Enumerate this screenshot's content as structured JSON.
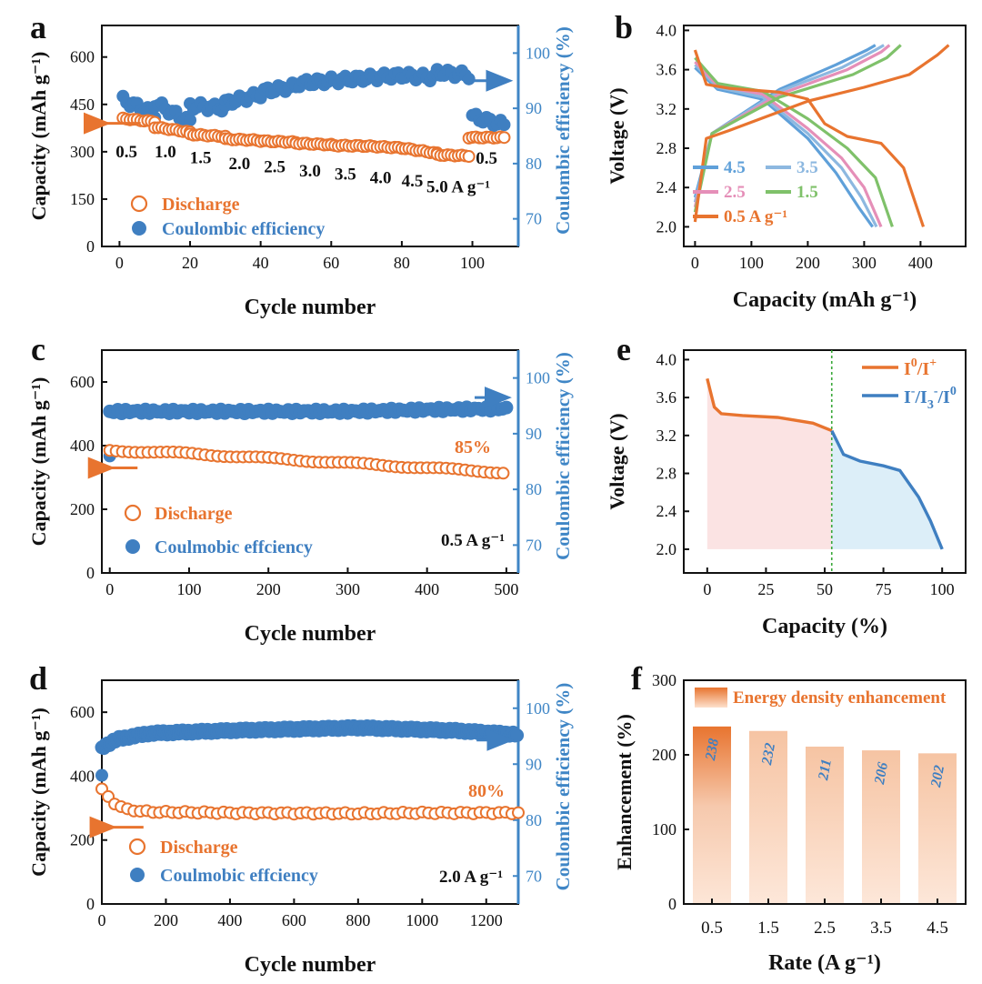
{
  "figure_title": "Figure: electrochemical performance of a zinc-iodine battery",
  "colors": {
    "orange": "#e8742f",
    "blue": "#3f7fc1",
    "axis_blue": "#3f86c6",
    "pink": "#e58fb8",
    "green": "#7fc16a",
    "light_blue": "#8db8e0",
    "mid_blue": "#5fa0d9",
    "green_dash": "#3aa83a",
    "fill_pink": "#fbe3e3",
    "fill_blue": "#dceef8"
  },
  "chart_data": [
    {
      "id": "a",
      "panel_label": "a",
      "type": "scatter",
      "title": "",
      "xlabel": "Cycle number",
      "ylabel": "Capacity (mAh g⁻¹)",
      "ylabel_right": "Coulombic efficiency (%)",
      "xlim": [
        -5,
        113
      ],
      "ylim": [
        0,
        700
      ],
      "ylim_right": [
        65,
        105
      ],
      "xticks": [
        0,
        20,
        40,
        60,
        80,
        100
      ],
      "yticks": [
        0,
        150,
        300,
        450,
        600
      ],
      "yticks_right": [
        70,
        80,
        90,
        100
      ],
      "rate_labels": [
        {
          "text": "0.5",
          "x": 2,
          "y": 305
        },
        {
          "text": "1.0",
          "x": 13,
          "y": 305
        },
        {
          "text": "1.5",
          "x": 23,
          "y": 286
        },
        {
          "text": "2.0",
          "x": 34,
          "y": 268
        },
        {
          "text": "2.5",
          "x": 44,
          "y": 258
        },
        {
          "text": "3.0",
          "x": 54,
          "y": 245
        },
        {
          "text": "3.5",
          "x": 64,
          "y": 235
        },
        {
          "text": "4.0",
          "x": 74,
          "y": 223
        },
        {
          "text": "4.5",
          "x": 83,
          "y": 213
        },
        {
          "text": "5.0 A g⁻¹",
          "x": 96,
          "y": 195
        },
        {
          "text": "0.5",
          "x": 104,
          "y": 285
        }
      ],
      "legend": [
        "Discharge",
        "Coulombic efficiency"
      ],
      "series": [
        {
          "name": "Discharge",
          "axis": "left",
          "marker": "open-circle",
          "segments": [
            {
              "x0": 1,
              "x1": 10,
              "v0": 405,
              "v1": 395
            },
            {
              "x0": 10,
              "x1": 20,
              "v0": 378,
              "v1": 362
            },
            {
              "x0": 20,
              "x1": 30,
              "v0": 355,
              "v1": 348
            },
            {
              "x0": 30,
              "x1": 40,
              "v0": 340,
              "v1": 336
            },
            {
              "x0": 40,
              "x1": 50,
              "v0": 334,
              "v1": 330
            },
            {
              "x0": 50,
              "x1": 60,
              "v0": 327,
              "v1": 322
            },
            {
              "x0": 60,
              "x1": 70,
              "v0": 320,
              "v1": 318
            },
            {
              "x0": 70,
              "x1": 80,
              "v0": 318,
              "v1": 312
            },
            {
              "x0": 80,
              "x1": 90,
              "v0": 312,
              "v1": 295
            },
            {
              "x0": 90,
              "x1": 99,
              "v0": 290,
              "v1": 287
            },
            {
              "x0": 99,
              "x1": 109,
              "v0": 345,
              "v1": 345
            }
          ]
        },
        {
          "name": "Coulombic efficiency",
          "axis": "right",
          "marker": "filled-circle",
          "segments": [
            {
              "x0": 1,
              "x1": 10,
              "v0": 91.5,
              "v1": 89.0
            },
            {
              "x0": 10,
              "x1": 20,
              "v0": 91.0,
              "v1": 87.5
            },
            {
              "x0": 20,
              "x1": 30,
              "v0": 90.5,
              "v1": 90.0
            },
            {
              "x0": 30,
              "x1": 40,
              "v0": 91.0,
              "v1": 92.5
            },
            {
              "x0": 40,
              "x1": 50,
              "v0": 93.0,
              "v1": 94.0
            },
            {
              "x0": 50,
              "x1": 60,
              "v0": 94.5,
              "v1": 95.0
            },
            {
              "x0": 60,
              "x1": 70,
              "v0": 95.0,
              "v1": 95.5
            },
            {
              "x0": 70,
              "x1": 80,
              "v0": 95.5,
              "v1": 96.0
            },
            {
              "x0": 80,
              "x1": 90,
              "v0": 96.0,
              "v1": 95.5
            },
            {
              "x0": 90,
              "x1": 99,
              "v0": 96.5,
              "v1": 96.0
            },
            {
              "x0": 100,
              "x1": 109,
              "v0": 88.5,
              "v1": 87.0
            }
          ]
        }
      ]
    },
    {
      "id": "b",
      "panel_label": "b",
      "type": "line",
      "title": "",
      "xlabel": "Capacity (mAh g⁻¹)",
      "ylabel": "Voltage (V)",
      "xlim": [
        -20,
        480
      ],
      "ylim": [
        1.8,
        4.05
      ],
      "xticks": [
        0,
        100,
        200,
        300,
        400
      ],
      "yticks": [
        2.0,
        2.4,
        2.8,
        3.2,
        3.6,
        4.0
      ],
      "legend": [
        "4.5",
        "3.5",
        "2.5",
        "1.5",
        "0.5 A g⁻¹"
      ],
      "series": [
        {
          "name": "0.5 A g⁻¹",
          "color_key": "orange",
          "discharge": [
            [
              0,
              3.8
            ],
            [
              20,
              3.45
            ],
            [
              60,
              3.41
            ],
            [
              150,
              3.37
            ],
            [
              200,
              3.3
            ],
            [
              230,
              3.05
            ],
            [
              270,
              2.92
            ],
            [
              330,
              2.85
            ],
            [
              370,
              2.6
            ],
            [
              405,
              2.0
            ]
          ],
          "charge": [
            [
              0,
              2.05
            ],
            [
              20,
              2.9
            ],
            [
              60,
              2.98
            ],
            [
              200,
              3.28
            ],
            [
              300,
              3.42
            ],
            [
              380,
              3.55
            ],
            [
              430,
              3.75
            ],
            [
              450,
              3.85
            ]
          ]
        },
        {
          "name": "1.5",
          "color_key": "green",
          "discharge": [
            [
              0,
              3.72
            ],
            [
              40,
              3.46
            ],
            [
              120,
              3.38
            ],
            [
              200,
              3.1
            ],
            [
              270,
              2.8
            ],
            [
              320,
              2.5
            ],
            [
              350,
              2.0
            ]
          ],
          "charge": [
            [
              0,
              2.15
            ],
            [
              30,
              2.95
            ],
            [
              150,
              3.32
            ],
            [
              280,
              3.55
            ],
            [
              340,
              3.72
            ],
            [
              365,
              3.85
            ]
          ]
        },
        {
          "name": "2.5",
          "color_key": "pink",
          "discharge": [
            [
              0,
              3.68
            ],
            [
              40,
              3.44
            ],
            [
              120,
              3.35
            ],
            [
              200,
              3.0
            ],
            [
              260,
              2.7
            ],
            [
              300,
              2.4
            ],
            [
              330,
              2.0
            ]
          ],
          "charge": [
            [
              0,
              2.2
            ],
            [
              30,
              2.95
            ],
            [
              150,
              3.35
            ],
            [
              270,
              3.6
            ],
            [
              330,
              3.78
            ],
            [
              345,
              3.85
            ]
          ]
        },
        {
          "name": "3.5",
          "color_key": "light_blue",
          "discharge": [
            [
              0,
              3.65
            ],
            [
              40,
              3.42
            ],
            [
              120,
              3.32
            ],
            [
              200,
              2.95
            ],
            [
              260,
              2.6
            ],
            [
              295,
              2.3
            ],
            [
              322,
              2.0
            ]
          ],
          "charge": [
            [
              0,
              2.25
            ],
            [
              30,
              2.95
            ],
            [
              150,
              3.38
            ],
            [
              260,
              3.62
            ],
            [
              320,
              3.8
            ],
            [
              335,
              3.85
            ]
          ]
        },
        {
          "name": "4.5",
          "color_key": "mid_blue",
          "discharge": [
            [
              0,
              3.62
            ],
            [
              40,
              3.4
            ],
            [
              120,
              3.3
            ],
            [
              200,
              2.9
            ],
            [
              250,
              2.55
            ],
            [
              290,
              2.2
            ],
            [
              315,
              2.0
            ]
          ],
          "charge": [
            [
              0,
              2.3
            ],
            [
              30,
              2.95
            ],
            [
              150,
              3.4
            ],
            [
              250,
              3.65
            ],
            [
              305,
              3.8
            ],
            [
              320,
              3.85
            ]
          ]
        }
      ]
    },
    {
      "id": "c",
      "panel_label": "c",
      "type": "scatter",
      "title": "",
      "xlabel": "Cycle number",
      "ylabel": "Capacity (mAh g⁻¹)",
      "ylabel_right": "Coulombic efficiency (%)",
      "xlim": [
        -10,
        515
      ],
      "ylim": [
        0,
        700
      ],
      "ylim_right": [
        65,
        105
      ],
      "xticks": [
        0,
        100,
        200,
        300,
        400,
        500
      ],
      "yticks": [
        0,
        200,
        400,
        600
      ],
      "yticks_right": [
        70,
        80,
        90,
        100
      ],
      "retention_label": "85%",
      "rate_label": "0.5 A g⁻¹",
      "legend": [
        "Discharge",
        "Coulmobic effciency"
      ],
      "series": [
        {
          "name": "Discharge",
          "axis": "left",
          "marker": "open-circle",
          "first_point": 370,
          "trend": [
            [
              0,
              385
            ],
            [
              100,
              375
            ],
            [
              200,
              360
            ],
            [
              300,
              345
            ],
            [
              400,
              330
            ],
            [
              500,
              315
            ]
          ]
        },
        {
          "name": "Coulmobic effciency",
          "axis": "right",
          "marker": "filled-circle",
          "first_point": 86,
          "trend": [
            [
              0,
              94
            ],
            [
              100,
              94
            ],
            [
              200,
              94
            ],
            [
              300,
              94
            ],
            [
              400,
              94.3
            ],
            [
              500,
              94.5
            ]
          ]
        }
      ]
    },
    {
      "id": "d",
      "panel_label": "d",
      "type": "scatter",
      "title": "",
      "xlabel": "Cycle number",
      "ylabel": "Capacity (mAh g⁻¹)",
      "ylabel_right": "Coulombic efficiency (%)",
      "xlim": [
        0,
        1300
      ],
      "ylim": [
        0,
        700
      ],
      "ylim_right": [
        65,
        105
      ],
      "xticks": [
        0,
        200,
        400,
        600,
        800,
        1000,
        1200
      ],
      "yticks": [
        0,
        200,
        400,
        600
      ],
      "yticks_right": [
        70,
        80,
        90,
        100
      ],
      "retention_label": "80%",
      "rate_label": "2.0 A g⁻¹",
      "legend": [
        "Discharge",
        "Coulmobic effciency"
      ],
      "series": [
        {
          "name": "Discharge",
          "axis": "left",
          "marker": "open-circle",
          "first_point": 365,
          "trend": [
            [
              0,
              360
            ],
            [
              30,
              320
            ],
            [
              80,
              295
            ],
            [
              150,
              288
            ],
            [
              400,
              285
            ],
            [
              800,
              283
            ],
            [
              1000,
              285
            ],
            [
              1300,
              285
            ]
          ]
        },
        {
          "name": "Coulmobic effciency",
          "axis": "right",
          "marker": "filled-circle",
          "first_point": 88,
          "trend": [
            [
              0,
              93
            ],
            [
              50,
              94.5
            ],
            [
              150,
              95.5
            ],
            [
              400,
              96
            ],
            [
              800,
              96.5
            ],
            [
              1100,
              96
            ],
            [
              1300,
              95.3
            ]
          ]
        }
      ]
    },
    {
      "id": "e",
      "panel_label": "e",
      "type": "area",
      "title": "",
      "xlabel": "Capacity (%)",
      "ylabel": "Voltage (V)",
      "xlim": [
        -10,
        110
      ],
      "ylim": [
        1.75,
        4.1
      ],
      "xticks": [
        0,
        25,
        50,
        75,
        100
      ],
      "yticks": [
        2.0,
        2.4,
        2.8,
        3.2,
        3.6,
        4.0
      ],
      "divider_x": 53,
      "legend_labels": [
        {
          "base": "I",
          "sup": "0",
          "mid": "/I",
          "sup2": "+"
        },
        {
          "base": "I",
          "sup": "-",
          "mid": "/I",
          "sub": "3",
          "sup2": "-",
          "end": "/I",
          "sup3": "0"
        }
      ],
      "series": [
        {
          "name": "I0/I+",
          "color_key": "orange",
          "points": [
            [
              0,
              3.8
            ],
            [
              3,
              3.5
            ],
            [
              6,
              3.43
            ],
            [
              15,
              3.41
            ],
            [
              30,
              3.39
            ],
            [
              45,
              3.33
            ],
            [
              53,
              3.25
            ]
          ]
        },
        {
          "name": "I-/I3-/I0",
          "color_key": "blue",
          "points": [
            [
              53,
              3.25
            ],
            [
              58,
              3.0
            ],
            [
              65,
              2.93
            ],
            [
              75,
              2.88
            ],
            [
              82,
              2.83
            ],
            [
              90,
              2.55
            ],
            [
              95,
              2.3
            ],
            [
              100,
              2.0
            ]
          ]
        }
      ]
    },
    {
      "id": "f",
      "panel_label": "f",
      "type": "bar",
      "title": "",
      "xlabel": "Rate (A g⁻¹)",
      "ylabel": "Enhancement (%)",
      "ylim": [
        0,
        300
      ],
      "yticks": [
        0,
        100,
        200,
        300
      ],
      "categories": [
        "0.5",
        "1.5",
        "2.5",
        "3.5",
        "4.5"
      ],
      "values": [
        238,
        232,
        211,
        206,
        202
      ],
      "legend": [
        "Energy density enhancement"
      ]
    }
  ]
}
